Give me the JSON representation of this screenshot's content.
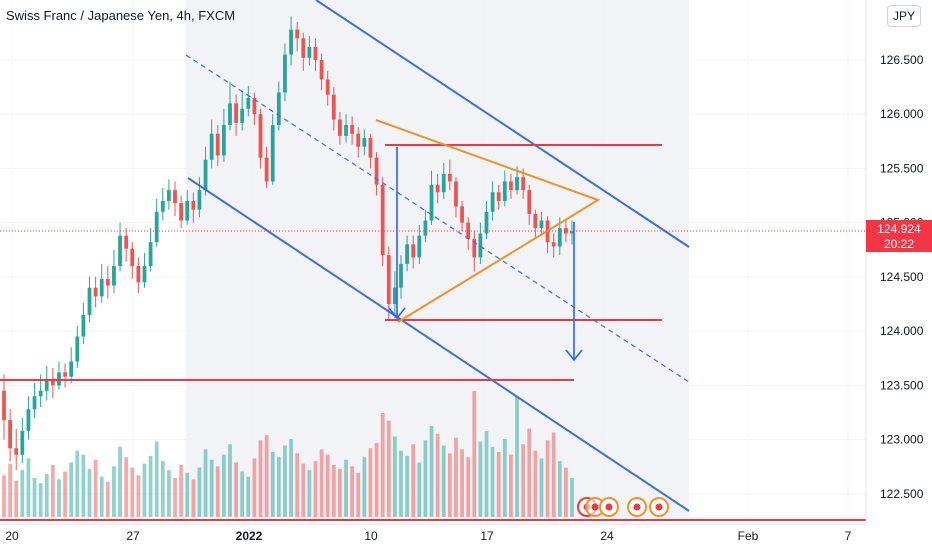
{
  "header": {
    "title": "Swiss Franc / Japanese Yen, 4h, FXCM",
    "currency_button": "JPY"
  },
  "last_price": {
    "value": "124.924",
    "countdown": "20:22"
  },
  "colors": {
    "up": "#26a69a",
    "down": "#ef5350",
    "channel": "#3d6ee0",
    "triangle": "#f2912a",
    "level": "#f23645",
    "projection": "#2962ff"
  },
  "chart_data": {
    "type": "candlestick",
    "title": "Swiss Franc / Japanese Yen, 4h, FXCM",
    "y_axis": {
      "currency": "JPY",
      "ticks": [
        "122.500",
        "123.000",
        "123.500",
        "124.000",
        "124.500",
        "125.000",
        "125.500",
        "126.000",
        "126.500"
      ],
      "ylim": [
        122.35,
        126.9
      ]
    },
    "x_axis": {
      "ticks": [
        "20",
        "27",
        "2022",
        "10",
        "17",
        "24",
        "Feb",
        "7"
      ]
    },
    "last_price": 124.924,
    "horizontal_levels": [
      125.65,
      124.15,
      123.65,
      122.42
    ],
    "volume_axis_max": 10,
    "candles": [
      [
        123.45,
        123.18,
        123.6,
        123.0
      ],
      [
        123.18,
        122.92,
        123.28,
        122.8
      ],
      [
        122.92,
        122.86,
        123.1,
        122.72
      ],
      [
        122.86,
        123.08,
        123.2,
        122.78
      ],
      [
        123.08,
        123.28,
        123.4,
        123.0
      ],
      [
        123.28,
        123.4,
        123.52,
        123.2
      ],
      [
        123.4,
        123.45,
        123.6,
        123.3
      ],
      [
        123.45,
        123.56,
        123.68,
        123.36
      ],
      [
        123.56,
        123.5,
        123.66,
        123.38
      ],
      [
        123.5,
        123.62,
        123.72,
        123.46
      ],
      [
        123.62,
        123.58,
        123.7,
        123.48
      ],
      [
        123.58,
        123.72,
        123.85,
        123.52
      ],
      [
        123.72,
        123.95,
        124.05,
        123.66
      ],
      [
        123.95,
        124.15,
        124.26,
        123.88
      ],
      [
        124.15,
        124.4,
        124.5,
        124.08
      ],
      [
        124.4,
        124.32,
        124.5,
        124.22
      ],
      [
        124.32,
        124.48,
        124.62,
        124.26
      ],
      [
        124.48,
        124.42,
        124.6,
        124.3
      ],
      [
        124.42,
        124.6,
        124.75,
        124.35
      ],
      [
        124.6,
        124.88,
        125.0,
        124.55
      ],
      [
        124.88,
        124.76,
        124.95,
        124.64
      ],
      [
        124.76,
        124.6,
        124.82,
        124.48
      ],
      [
        124.6,
        124.45,
        124.68,
        124.35
      ],
      [
        124.45,
        124.6,
        124.72,
        124.4
      ],
      [
        124.6,
        124.82,
        124.95,
        124.55
      ],
      [
        124.82,
        125.1,
        125.22,
        124.78
      ],
      [
        125.1,
        125.2,
        125.32,
        125.02
      ],
      [
        125.2,
        125.3,
        125.4,
        125.12
      ],
      [
        125.3,
        125.18,
        125.38,
        125.06
      ],
      [
        125.18,
        125.02,
        125.25,
        124.95
      ],
      [
        125.02,
        125.2,
        125.3,
        124.98
      ],
      [
        125.2,
        125.12,
        125.28,
        125.0
      ],
      [
        125.12,
        125.3,
        125.42,
        125.05
      ],
      [
        125.3,
        125.58,
        125.7,
        125.25
      ],
      [
        125.58,
        125.82,
        125.95,
        125.5
      ],
      [
        125.82,
        125.62,
        125.9,
        125.52
      ],
      [
        125.62,
        125.9,
        126.05,
        125.56
      ],
      [
        125.9,
        126.1,
        126.3,
        125.85
      ],
      [
        126.1,
        125.92,
        126.18,
        125.8
      ],
      [
        125.92,
        126.05,
        126.2,
        125.85
      ],
      [
        126.05,
        126.15,
        126.26,
        125.98
      ],
      [
        126.15,
        126.0,
        126.2,
        125.9
      ],
      [
        126.0,
        125.6,
        126.05,
        125.5
      ],
      [
        125.6,
        125.38,
        125.7,
        125.32
      ],
      [
        125.38,
        125.9,
        126.0,
        125.35
      ],
      [
        125.9,
        126.2,
        126.3,
        125.85
      ],
      [
        126.2,
        126.55,
        126.65,
        126.12
      ],
      [
        126.55,
        126.78,
        126.9,
        126.45
      ],
      [
        126.78,
        126.7,
        126.85,
        126.58
      ],
      [
        126.7,
        126.52,
        126.75,
        126.4
      ],
      [
        126.52,
        126.62,
        126.72,
        126.45
      ],
      [
        126.62,
        126.5,
        126.7,
        126.4
      ],
      [
        126.5,
        126.32,
        126.56,
        126.22
      ],
      [
        126.32,
        126.18,
        126.4,
        126.08
      ],
      [
        126.18,
        125.95,
        126.25,
        125.85
      ],
      [
        125.95,
        125.8,
        126.02,
        125.72
      ],
      [
        125.8,
        125.9,
        126.0,
        125.74
      ],
      [
        125.9,
        125.82,
        125.98,
        125.72
      ],
      [
        125.82,
        125.7,
        125.88,
        125.6
      ],
      [
        125.7,
        125.78,
        125.86,
        125.62
      ],
      [
        125.78,
        125.6,
        125.82,
        125.5
      ],
      [
        125.6,
        125.35,
        125.65,
        125.25
      ],
      [
        125.35,
        124.7,
        125.42,
        124.6
      ],
      [
        124.7,
        124.25,
        124.78,
        124.1
      ],
      [
        124.25,
        124.4,
        124.55,
        124.12
      ],
      [
        124.4,
        124.62,
        124.7,
        124.3
      ],
      [
        124.62,
        124.8,
        124.88,
        124.55
      ],
      [
        124.8,
        124.68,
        124.88,
        124.58
      ],
      [
        124.68,
        124.88,
        124.98,
        124.62
      ],
      [
        124.88,
        125.02,
        125.12,
        124.82
      ],
      [
        125.02,
        125.35,
        125.48,
        124.98
      ],
      [
        125.35,
        125.28,
        125.45,
        125.18
      ],
      [
        125.28,
        125.45,
        125.55,
        125.22
      ],
      [
        125.45,
        125.38,
        125.58,
        125.3
      ],
      [
        125.38,
        125.15,
        125.42,
        125.05
      ],
      [
        125.15,
        125.0,
        125.2,
        124.92
      ],
      [
        125.0,
        124.85,
        125.05,
        124.75
      ],
      [
        124.85,
        124.68,
        124.92,
        124.55
      ],
      [
        124.68,
        124.9,
        125.0,
        124.62
      ],
      [
        124.9,
        125.1,
        125.2,
        124.85
      ],
      [
        125.1,
        125.28,
        125.38,
        125.02
      ],
      [
        125.28,
        125.2,
        125.35,
        125.12
      ],
      [
        125.2,
        125.38,
        125.48,
        125.15
      ],
      [
        125.38,
        125.3,
        125.45,
        125.22
      ],
      [
        125.3,
        125.42,
        125.52,
        125.26
      ],
      [
        125.42,
        125.3,
        125.5,
        125.22
      ],
      [
        125.3,
        125.08,
        125.35,
        124.98
      ],
      [
        125.08,
        124.95,
        125.12,
        124.86
      ],
      [
        124.95,
        125.02,
        125.1,
        124.88
      ],
      [
        125.02,
        124.82,
        125.06,
        124.72
      ],
      [
        124.82,
        124.78,
        124.9,
        124.68
      ],
      [
        124.78,
        124.95,
        125.05,
        124.7
      ],
      [
        124.95,
        124.9,
        125.02,
        124.82
      ],
      [
        124.9,
        124.92,
        125.02,
        124.8
      ]
    ],
    "volume": [
      3.2,
      4.1,
      2.8,
      3.6,
      4.5,
      3.0,
      2.6,
      3.3,
      4.0,
      2.9,
      3.5,
      4.2,
      5.1,
      4.8,
      3.7,
      4.4,
      3.1,
      2.7,
      3.9,
      5.4,
      4.6,
      3.8,
      3.2,
      4.1,
      4.7,
      5.8,
      4.3,
      3.6,
      3.0,
      4.0,
      3.4,
      2.9,
      3.8,
      5.2,
      4.4,
      3.9,
      4.8,
      5.6,
      4.2,
      3.5,
      3.1,
      4.5,
      5.9,
      6.3,
      5.0,
      4.6,
      5.5,
      6.0,
      4.9,
      4.1,
      3.6,
      4.3,
      5.2,
      4.8,
      4.0,
      3.7,
      4.4,
      3.9,
      3.4,
      4.6,
      5.3,
      5.7,
      8.0,
      7.4,
      6.2,
      5.1,
      4.7,
      5.6,
      4.2,
      5.9,
      7.0,
      6.4,
      5.5,
      4.9,
      6.1,
      5.2,
      4.6,
      9.7,
      5.8,
      6.6,
      5.4,
      5.0,
      6.0,
      4.8,
      9.3,
      5.6,
      6.8,
      5.1,
      4.5,
      5.9,
      6.5,
      4.3,
      3.8,
      3.0
    ]
  }
}
